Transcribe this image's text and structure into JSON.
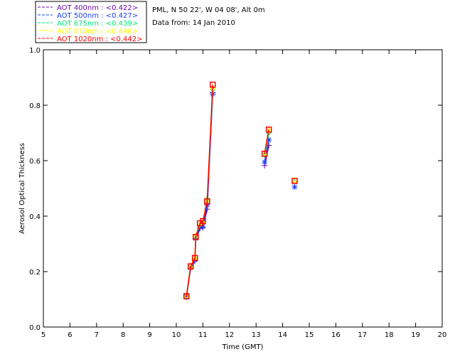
{
  "chart_data": {
    "type": "line",
    "header": [
      "PML, N 50 22', W 04 08', Alt 0m",
      "Data from: 14 Jan 2010"
    ],
    "xlabel": "Time (GMT)",
    "ylabel": "Aerosol Optical Thickness",
    "xlim": [
      5,
      20
    ],
    "ylim": [
      0,
      1.0
    ],
    "xticks": [
      "5",
      "6",
      "7",
      "8",
      "9",
      "10",
      "11",
      "12",
      "13",
      "14",
      "15",
      "16",
      "17",
      "18",
      "19",
      "20"
    ],
    "yticks": [
      "0.0",
      "0.2",
      "0.4",
      "0.6",
      "0.8",
      "1.0"
    ],
    "x": [
      10.38,
      10.54,
      10.7,
      10.73,
      10.89,
      11.0,
      11.16,
      11.37,
      13.32,
      13.48,
      14.45
    ],
    "segments": [
      [
        0,
        7
      ],
      [
        8,
        9
      ],
      [
        10,
        10
      ]
    ],
    "series": [
      {
        "name": "AOT  400nm : <0.422>",
        "color": "#6a0dad",
        "marker": "plus",
        "values": [
          0.108,
          0.212,
          0.238,
          0.315,
          0.355,
          0.358,
          0.425,
          0.845,
          0.582,
          0.655,
          0.505
        ]
      },
      {
        "name": "AOT  500nm : <0.427>",
        "color": "#1a3cff",
        "marker": "star",
        "values": [
          0.11,
          0.214,
          0.242,
          0.32,
          0.36,
          0.362,
          0.44,
          0.84,
          0.595,
          0.675,
          0.505
        ]
      },
      {
        "name": "AOT  675nm : <0.439>",
        "color": "#00e676",
        "marker": "diamond",
        "values": [
          0.112,
          0.218,
          0.248,
          0.326,
          0.368,
          0.376,
          0.462,
          0.856,
          0.62,
          0.7,
          0.524
        ]
      },
      {
        "name": "AOT  870nm : <0.446>",
        "color": "#ffff00",
        "marker": "triangle",
        "values": [
          0.114,
          0.22,
          0.252,
          0.33,
          0.372,
          0.382,
          0.458,
          0.866,
          0.628,
          0.714,
          0.53
        ]
      },
      {
        "name": "AOT 1020nm : <0.442>",
        "color": "#ff0000",
        "marker": "square",
        "values": [
          0.111,
          0.219,
          0.249,
          0.325,
          0.374,
          0.382,
          0.453,
          0.874,
          0.625,
          0.712,
          0.527
        ]
      }
    ]
  }
}
